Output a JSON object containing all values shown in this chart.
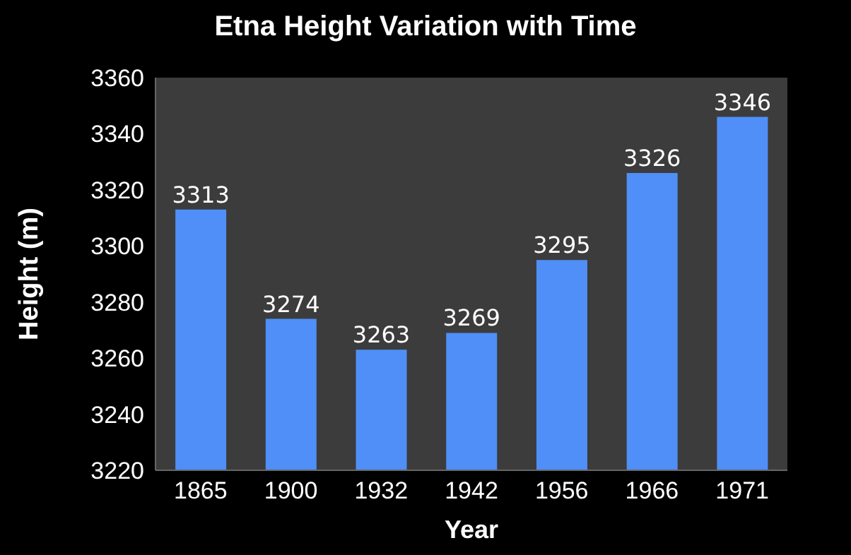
{
  "chart_data": {
    "type": "bar",
    "title": "Etna Height Variation with Time",
    "xlabel": "Year",
    "ylabel": "Height (m)",
    "categories": [
      "1865",
      "1900",
      "1932",
      "1942",
      "1956",
      "1966",
      "1971"
    ],
    "values": [
      3313,
      3274,
      3263,
      3269,
      3295,
      3326,
      3346
    ],
    "color": "#4f8ff7",
    "data_labels": true,
    "ylim": [
      3220,
      3360
    ],
    "yticks": [
      3220,
      3240,
      3260,
      3280,
      3300,
      3320,
      3340,
      3360
    ]
  }
}
